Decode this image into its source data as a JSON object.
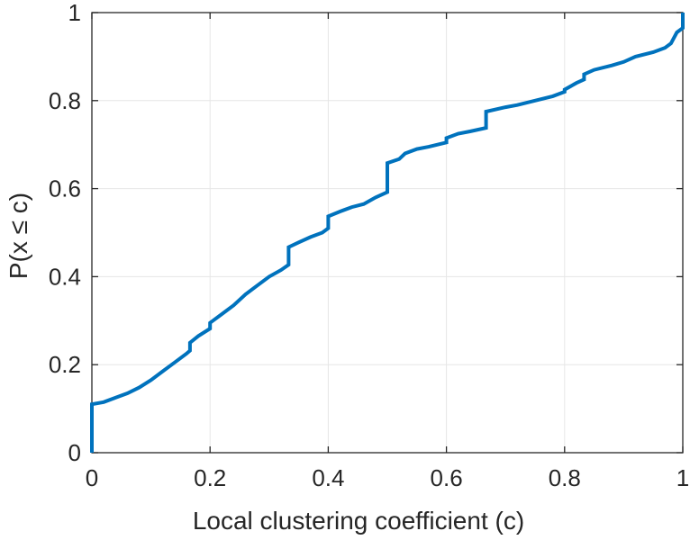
{
  "chart_data": {
    "type": "line",
    "title": "",
    "xlabel": "Local clustering coefficient (c)",
    "ylabel": "P(x ≤ c)",
    "xlim": [
      0,
      1
    ],
    "ylim": [
      0,
      1
    ],
    "grid": true,
    "line_color": "#0072BD",
    "xticks": [
      0,
      0.2,
      0.4,
      0.6,
      0.8,
      1
    ],
    "yticks": [
      0,
      0.2,
      0.4,
      0.6,
      0.8,
      1
    ],
    "xtick_labels": [
      "0",
      "0.2",
      "0.4",
      "0.6",
      "0.8",
      "1"
    ],
    "ytick_labels": [
      "0",
      "0.2",
      "0.4",
      "0.6",
      "0.8",
      "1"
    ],
    "series": [
      {
        "x": [
          0,
          0,
          0.02,
          0.04,
          0.06,
          0.08,
          0.1,
          0.12,
          0.14,
          0.16,
          0.166,
          0.166,
          0.18,
          0.2,
          0.2,
          0.22,
          0.24,
          0.26,
          0.28,
          0.3,
          0.32,
          0.333,
          0.333,
          0.35,
          0.37,
          0.39,
          0.4,
          0.4,
          0.42,
          0.44,
          0.46,
          0.48,
          0.5,
          0.5,
          0.52,
          0.53,
          0.55,
          0.57,
          0.6,
          0.6,
          0.62,
          0.64,
          0.667,
          0.667,
          0.7,
          0.72,
          0.75,
          0.78,
          0.8,
          0.8,
          0.82,
          0.833,
          0.833,
          0.85,
          0.88,
          0.9,
          0.92,
          0.95,
          0.97,
          0.98,
          0.99,
          1.0,
          1.0
        ],
        "y": [
          0,
          0.11,
          0.115,
          0.125,
          0.135,
          0.148,
          0.165,
          0.185,
          0.205,
          0.225,
          0.232,
          0.25,
          0.265,
          0.282,
          0.295,
          0.315,
          0.335,
          0.36,
          0.38,
          0.4,
          0.415,
          0.427,
          0.467,
          0.478,
          0.49,
          0.5,
          0.51,
          0.537,
          0.548,
          0.558,
          0.565,
          0.58,
          0.592,
          0.658,
          0.667,
          0.68,
          0.69,
          0.695,
          0.705,
          0.715,
          0.725,
          0.73,
          0.738,
          0.775,
          0.785,
          0.79,
          0.8,
          0.81,
          0.82,
          0.825,
          0.84,
          0.848,
          0.86,
          0.87,
          0.88,
          0.888,
          0.9,
          0.91,
          0.92,
          0.93,
          0.955,
          0.965,
          1.0
        ]
      }
    ]
  }
}
